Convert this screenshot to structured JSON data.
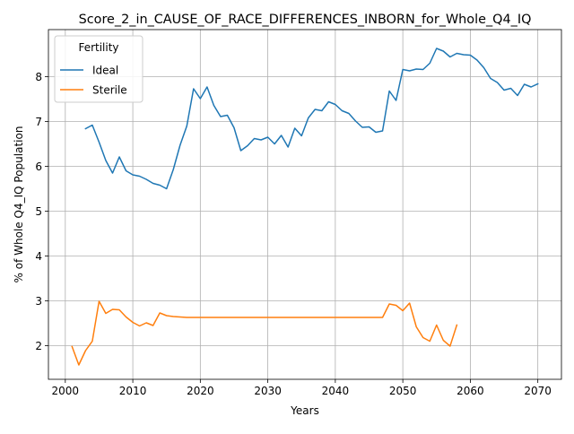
{
  "chart_data": {
    "type": "line",
    "title": "Score_2_in_CAUSE_OF_RACE_DIFFERENCES_INBORN_for_Whole_Q4_IQ",
    "xlabel": "Years",
    "ylabel": "% of Whole Q4_IQ Population",
    "xlim": [
      1997.5,
      2073.5
    ],
    "ylim": [
      1.25,
      9.05
    ],
    "xticks": [
      2000,
      2010,
      2020,
      2030,
      2040,
      2050,
      2060,
      2070
    ],
    "yticks": [
      2,
      3,
      4,
      5,
      6,
      7,
      8
    ],
    "grid": true,
    "legend": {
      "title": "Fertility",
      "placement": "top-left"
    },
    "series": [
      {
        "name": "Ideal",
        "color": "#1f77b4",
        "x": [
          2003,
          2004,
          2005,
          2006,
          2007,
          2008,
          2009,
          2010,
          2011,
          2012,
          2013,
          2014,
          2015,
          2016,
          2017,
          2018,
          2019,
          2020,
          2021,
          2022,
          2023,
          2024,
          2025,
          2026,
          2027,
          2028,
          2029,
          2030,
          2031,
          2032,
          2033,
          2034,
          2035,
          2036,
          2037,
          2038,
          2039,
          2040,
          2041,
          2042,
          2043,
          2044,
          2045,
          2046,
          2047,
          2048,
          2049,
          2050,
          2051,
          2052,
          2053,
          2054,
          2055,
          2056,
          2057,
          2058,
          2059,
          2060,
          2061,
          2062,
          2063,
          2064,
          2065,
          2066,
          2067,
          2068,
          2069,
          2070
        ],
        "y": [
          6.84,
          6.92,
          6.54,
          6.13,
          5.85,
          6.21,
          5.9,
          5.81,
          5.78,
          5.71,
          5.62,
          5.58,
          5.5,
          5.93,
          6.47,
          6.9,
          7.73,
          7.51,
          7.77,
          7.36,
          7.11,
          7.14,
          6.86,
          6.35,
          6.46,
          6.62,
          6.59,
          6.65,
          6.5,
          6.69,
          6.43,
          6.85,
          6.68,
          7.08,
          7.27,
          7.24,
          7.44,
          7.38,
          7.24,
          7.18,
          7.01,
          6.87,
          6.88,
          6.76,
          6.79,
          7.68,
          7.47,
          8.16,
          8.13,
          8.17,
          8.16,
          8.3,
          8.63,
          8.57,
          8.44,
          8.52,
          8.49,
          8.48,
          8.37,
          8.2,
          7.96,
          7.87,
          7.7,
          7.74,
          7.58,
          7.83,
          7.77,
          7.84
        ]
      },
      {
        "name": "Sterile",
        "color": "#ff7f0e",
        "x": [
          2001,
          2002,
          2003,
          2004,
          2005,
          2006,
          2007,
          2008,
          2009,
          2010,
          2011,
          2012,
          2013,
          2014,
          2015,
          2016,
          2017,
          2018,
          2019,
          2020,
          2021,
          2022,
          2023,
          2024,
          2025,
          2026,
          2027,
          2028,
          2029,
          2030,
          2031,
          2032,
          2033,
          2034,
          2035,
          2036,
          2037,
          2038,
          2039,
          2040,
          2041,
          2042,
          2043,
          2044,
          2045,
          2046,
          2047,
          2048,
          2049,
          2050,
          2051,
          2052,
          2053,
          2054,
          2055,
          2056,
          2057,
          2058
        ],
        "y": [
          1.98,
          1.57,
          1.89,
          2.1,
          2.99,
          2.72,
          2.81,
          2.8,
          2.64,
          2.52,
          2.44,
          2.51,
          2.45,
          2.73,
          2.67,
          2.65,
          2.64,
          2.63,
          2.63,
          2.63,
          2.63,
          2.63,
          2.63,
          2.63,
          2.63,
          2.63,
          2.63,
          2.63,
          2.63,
          2.63,
          2.63,
          2.63,
          2.63,
          2.63,
          2.63,
          2.63,
          2.63,
          2.63,
          2.63,
          2.63,
          2.63,
          2.63,
          2.63,
          2.63,
          2.63,
          2.63,
          2.63,
          2.93,
          2.9,
          2.78,
          2.95,
          2.42,
          2.18,
          2.1,
          2.46,
          2.12,
          1.99,
          2.46
        ]
      }
    ]
  }
}
